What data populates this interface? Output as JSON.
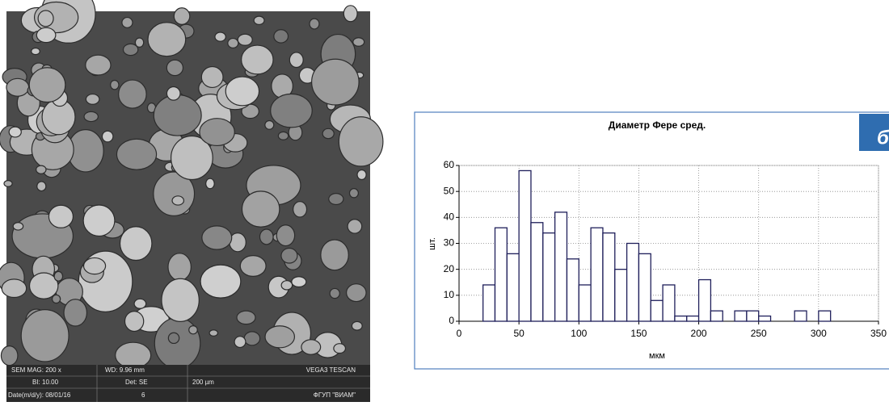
{
  "image": {
    "info_bar": [
      "SEM MAG: 200 x",
      "WD: 9.96 mm",
      "VEGA3 TESCAN",
      "BI: 10.00",
      "Det: SE",
      "200 µm",
      "Date(m/d/y): 08/01/16",
      "6",
      "ФГУП \"ВИАМ\""
    ]
  },
  "panel_label": "б",
  "chart_data": {
    "type": "histogram",
    "title": "Диаметр Фере сред.",
    "x_label": "мкм",
    "y_label": "шт.",
    "bins": [
      20,
      30,
      40,
      50,
      60,
      70,
      80,
      90,
      100,
      110,
      120,
      130,
      140,
      150,
      160,
      170,
      180,
      190,
      200,
      210,
      220,
      230,
      240,
      250,
      260,
      270,
      280,
      290,
      300,
      310
    ],
    "counts": [
      14,
      36,
      26,
      58,
      38,
      34,
      42,
      24,
      14,
      36,
      34,
      20,
      30,
      26,
      8,
      14,
      2,
      2,
      16,
      4,
      0,
      4,
      4,
      2,
      0,
      0,
      4,
      0,
      4
    ],
    "color": "#1f1f5a",
    "xlim": [
      0,
      350
    ],
    "xticks": [
      0,
      50,
      100,
      150,
      200,
      250,
      300,
      350
    ],
    "ylim": [
      0,
      60
    ],
    "yticks": [
      0,
      10,
      20,
      30,
      40,
      50,
      60
    ],
    "grid": true
  }
}
